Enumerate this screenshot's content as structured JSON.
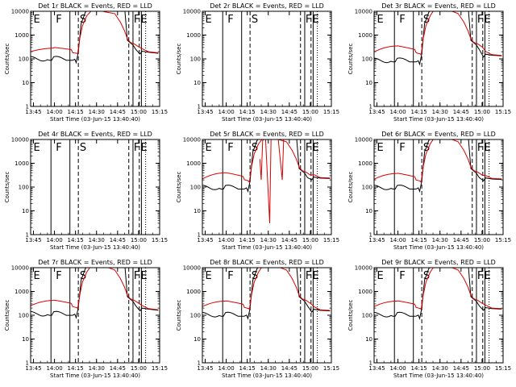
{
  "figure": {
    "background": "#ffffff",
    "events_color": "#000000",
    "lld_color": "#dd0000",
    "time_axis_label": "Start Time (03-Jun-15 13:40:40)"
  },
  "chart_data": [
    {
      "type": "line",
      "title": "Det 1r BLACK = Events, RED = LLD",
      "events": true,
      "profile": {
        "pre": [
          210,
          180,
          300
        ],
        "rise_top": 10000,
        "post": [
          200,
          180
        ],
        "dip": false
      }
    },
    {
      "type": "line",
      "title": "Det 2r BLACK = Events, RED = LLD",
      "events": false,
      "profile": null
    },
    {
      "type": "line",
      "title": "Det 3r BLACK = Events, RED = LLD",
      "events": true,
      "profile": {
        "pre": [
          180,
          230,
          350
        ],
        "rise_top": 12000,
        "post": [
          150,
          140
        ],
        "dip": false
      }
    },
    {
      "type": "line",
      "title": "Det 4r BLACK = Events, RED = LLD",
      "events": false,
      "profile": null
    },
    {
      "type": "line",
      "title": "Det 5r BLACK = Events, RED = LLD",
      "events": true,
      "profile": {
        "pre": [
          200,
          260,
          400
        ],
        "rise_top": 11000,
        "post": [
          250,
          240
        ],
        "dip": true
      }
    },
    {
      "type": "line",
      "title": "Det 6r BLACK = Events, RED = LLD",
      "events": true,
      "profile": {
        "pre": [
          200,
          240,
          380
        ],
        "rise_top": 12000,
        "post": [
          230,
          220
        ],
        "dip": false
      }
    },
    {
      "type": "line",
      "title": "Det 7r BLACK = Events, RED = LLD",
      "events": true,
      "profile": {
        "pre": [
          240,
          280,
          430
        ],
        "rise_top": 12000,
        "post": [
          190,
          170
        ],
        "dip": false
      }
    },
    {
      "type": "line",
      "title": "Det 8r BLACK = Events, RED = LLD",
      "events": true,
      "profile": {
        "pre": [
          220,
          260,
          400
        ],
        "rise_top": 12000,
        "post": [
          170,
          160
        ],
        "dip": false
      }
    },
    {
      "type": "line",
      "title": "Det 9r BLACK = Events, RED = LLD",
      "events": true,
      "profile": {
        "pre": [
          220,
          260,
          400
        ],
        "rise_top": 12000,
        "post": [
          200,
          190
        ],
        "dip": false
      }
    }
  ],
  "shared_axes": {
    "xlabel": "Start Time (03-Jun-15 13:40:40)",
    "ylabel": "Counts/sec",
    "yscale": "log",
    "ylim": [
      1,
      10000
    ],
    "yticks": [
      1,
      10,
      100,
      1000,
      10000
    ],
    "ytick_labels": [
      "1",
      "10",
      "100",
      "1000",
      "10000"
    ],
    "xlim_minutes": [
      43,
      135
    ],
    "xticks_minutes": [
      45,
      60,
      75,
      90,
      105,
      120,
      135
    ],
    "xtick_labels": [
      "13:45",
      "14:00",
      "14:15",
      "14:30",
      "14:45",
      "15:00",
      "15:15"
    ],
    "x_origin_hour": 13
  },
  "annotation_lines": [
    {
      "minute": 57.5,
      "style": "solid"
    },
    {
      "minute": 71,
      "style": "solid"
    },
    {
      "minute": 77,
      "style": "dashed"
    },
    {
      "minute": 113,
      "style": "dashed"
    },
    {
      "minute": 116,
      "style": "solid"
    },
    {
      "minute": 120.5,
      "style": "dashed"
    },
    {
      "minute": 122,
      "style": "solid"
    },
    {
      "minute": 125,
      "style": "dotted"
    }
  ],
  "interval_labels": [
    {
      "text": "E",
      "minute": 45
    },
    {
      "text": "F",
      "minute": 61
    },
    {
      "text": "S",
      "minute": 78
    },
    {
      "text": "F",
      "minute": 116.5
    },
    {
      "text": "E",
      "minute": 121.5
    }
  ]
}
